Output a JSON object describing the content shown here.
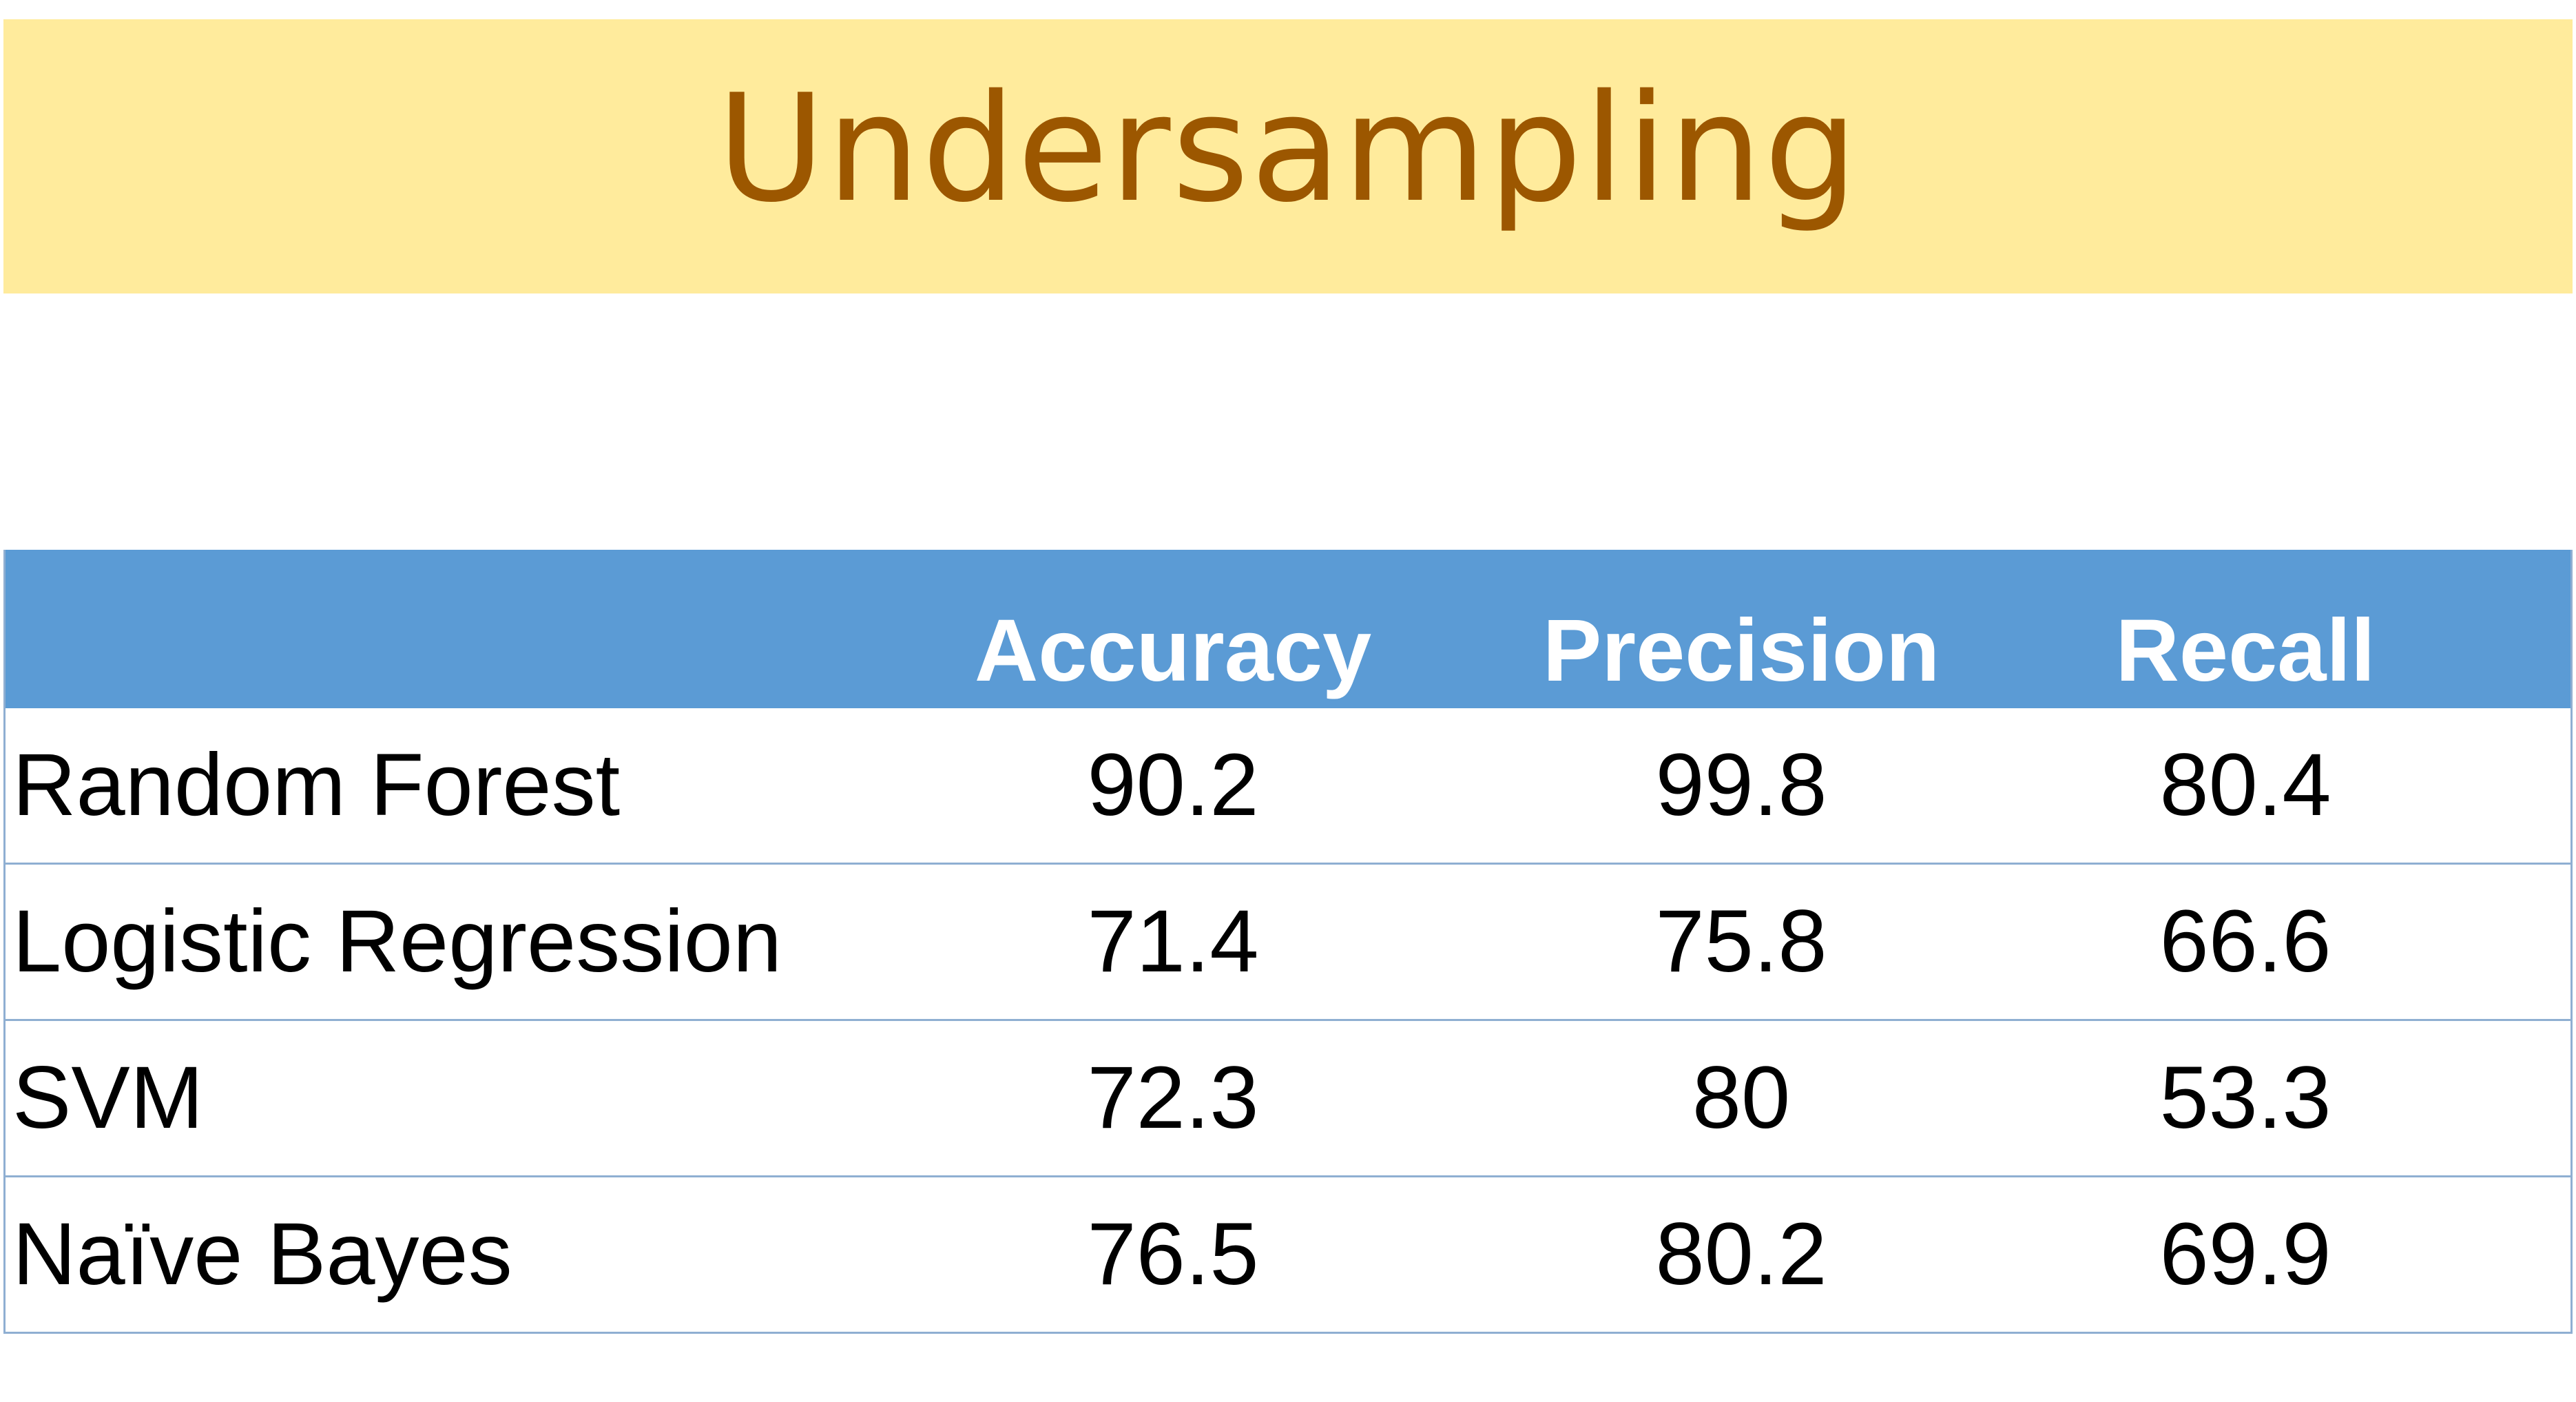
{
  "title": "Undersampling",
  "colors": {
    "title_bg": "#FFEB9C",
    "title_text": "#9C5700",
    "header_bg": "#5B9BD5",
    "header_text": "#FFFFFF",
    "grid_line": "#8FAFD2"
  },
  "chart_data": {
    "type": "table",
    "title": "Undersampling",
    "columns": [
      "",
      "Accuracy",
      "Precision",
      "Recall"
    ],
    "rows": [
      {
        "model": "Random Forest",
        "accuracy": "90.2",
        "precision": "99.8",
        "recall": "80.4"
      },
      {
        "model": "Logistic Regression",
        "accuracy": "71.4",
        "precision": "75.8",
        "recall": "66.6"
      },
      {
        "model": "SVM",
        "accuracy": "72.3",
        "precision": "80",
        "recall": "53.3"
      },
      {
        "model": "Naïve Bayes",
        "accuracy": "76.5",
        "precision": "80.2",
        "recall": "69.9"
      }
    ]
  }
}
